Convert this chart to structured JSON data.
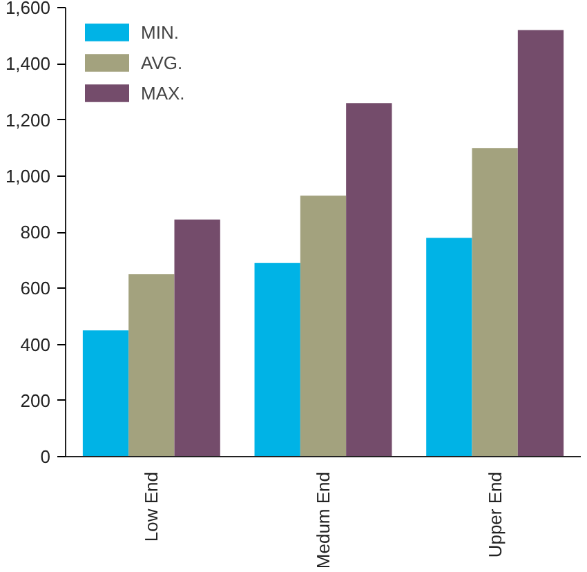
{
  "chart_data": {
    "type": "bar",
    "categories": [
      "Low End",
      "Medum End",
      "Upper End"
    ],
    "series": [
      {
        "name": "MIN.",
        "color": "#00b3e6",
        "values": [
          450,
          690,
          780
        ]
      },
      {
        "name": "AVG.",
        "color": "#a3a27e",
        "values": [
          650,
          930,
          1100
        ]
      },
      {
        "name": "MAX.",
        "color": "#744c6b",
        "values": [
          845,
          1260,
          1520
        ]
      }
    ],
    "ylim": [
      0,
      1600
    ],
    "yticks": [
      0,
      200,
      400,
      600,
      800,
      {
        "value": 1000,
        "label": "1,000"
      },
      {
        "value": 1200,
        "label": "1,200"
      },
      {
        "value": 1400,
        "label": "1,400"
      },
      {
        "value": 1600,
        "label": "1,600"
      }
    ],
    "grid": false,
    "legend": "top left"
  }
}
